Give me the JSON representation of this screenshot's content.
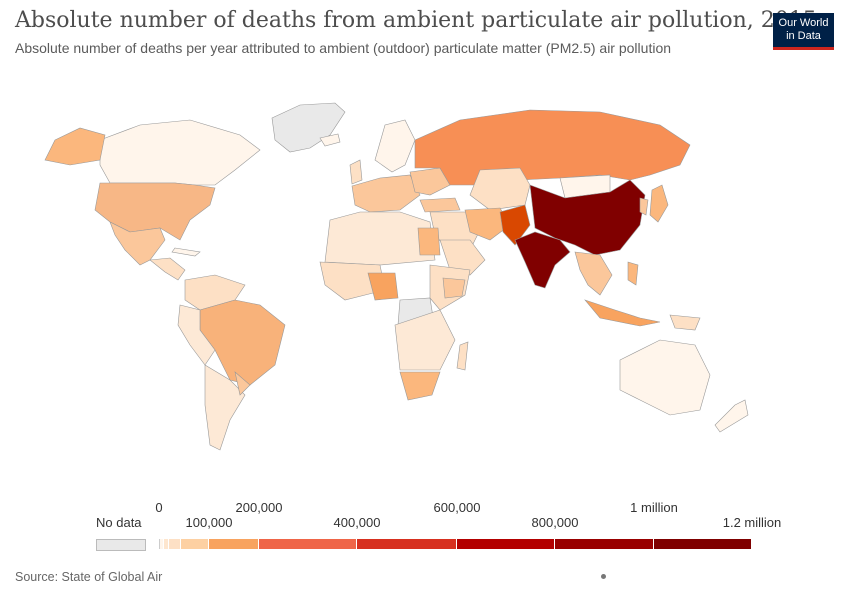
{
  "header": {
    "title": "Absolute number of deaths from ambient particulate air pollution, 2015",
    "subtitle": "Absolute number of deaths per year attributed to ambient (outdoor) particulate matter (PM2.5) air pollution"
  },
  "logo": {
    "line1": "Our World",
    "line2": "in Data"
  },
  "legend": {
    "no_data_label": "No data",
    "ticks_top": [
      "0",
      "200,000",
      "600,000",
      "1 million"
    ],
    "ticks_bottom": [
      "100,000",
      "400,000",
      "800,000",
      "1.2 million"
    ],
    "colors": [
      "#fff5eb",
      "#fee6ce",
      "#fdd0a2",
      "#fdae6b",
      "#fd8d3c",
      "#f16913",
      "#d94801",
      "#a50f15",
      "#800000",
      "#67000d"
    ]
  },
  "footer": {
    "source": "Source: State of Global Air"
  },
  "colors": {
    "no_data": "#e9e9e9",
    "very_low": "#fff5eb",
    "low": "#fde0c5",
    "mid_low": "#fbb77d",
    "mid": "#f8a35f",
    "russia": "#f78f55",
    "high": "#b30000",
    "highest": "#800000"
  }
}
